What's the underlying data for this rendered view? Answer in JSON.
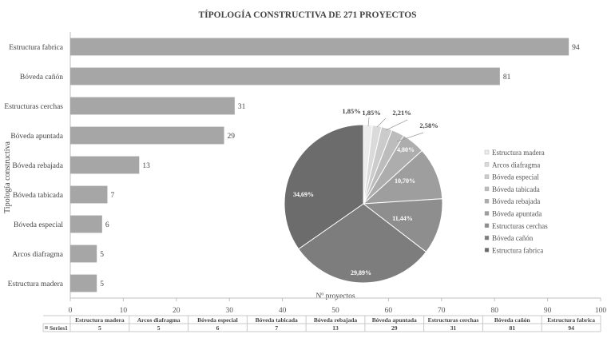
{
  "chart_data": [
    {
      "type": "bar",
      "orientation": "horizontal",
      "title": "TÍPOLOGÍA CONSTRUCTIVA DE 271 PROYECTOS",
      "ylabel": "Tipología constructiva",
      "xlabel": "Nº proyectos",
      "categories": [
        "Estructura madera",
        "Arcos diafragma",
        "Bóveda especial",
        "Bóveda tabicada",
        "Bóveda rebajada",
        "Bóveda apuntada",
        "Estructuras cerchas",
        "Bóveda cañón",
        "Estructura fabrica"
      ],
      "series": [
        {
          "name": "Series1",
          "values": [
            5,
            5,
            6,
            7,
            13,
            29,
            31,
            81,
            94
          ]
        }
      ],
      "xlim": [
        0,
        100
      ],
      "xticks": [
        0,
        10,
        20,
        30,
        40,
        50,
        60,
        70,
        80,
        90,
        100
      ],
      "bar_color": "#a6a6a6",
      "data_table": true
    },
    {
      "type": "pie",
      "labels": [
        "Estructura madera",
        "Arcos diafragma",
        "Bóveda especial",
        "Bóveda tabicada",
        "Bóveda rebajada",
        "Bóveda apuntada",
        "Estructuras cerchas",
        "Bóveda cañón",
        "Estructura fabrica"
      ],
      "values": [
        5,
        5,
        6,
        7,
        13,
        29,
        31,
        81,
        94
      ],
      "percent_labels": [
        "1,85%",
        "1,85%",
        "2,21%",
        "2,58%",
        "4,80%",
        "10,70%",
        "11,44%",
        "29,89%",
        "34,69%"
      ],
      "colors": [
        "#ececec",
        "#dadada",
        "#cbcbcb",
        "#bcbcbc",
        "#adadad",
        "#9e9e9e",
        "#8e8e8e",
        "#7d7d7d",
        "#6c6c6c"
      ],
      "legend_position": "right"
    }
  ]
}
